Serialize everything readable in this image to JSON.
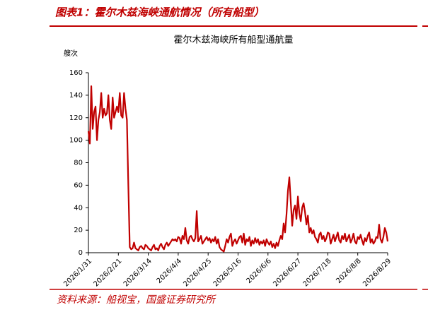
{
  "figure_label": "图表1：霍尔木兹海峡通航情况（所有船型）",
  "source": "资料来源：船视宝，国盛证券研究所",
  "chart_data": {
    "type": "line",
    "title": "霍尔木兹海峡所有船型通航量",
    "y_label": "艘次",
    "xlim": [
      "2026/1/31",
      "2026/8/29"
    ],
    "xticks": [
      "2026/1/31",
      "2026/2/21",
      "2026/3/14",
      "2026/4/4",
      "2026/4/25",
      "2026/5/16",
      "2026/6/6",
      "2026/6/27",
      "2026/7/18",
      "2026/8/8",
      "2026/8/29"
    ],
    "ylim": [
      0,
      160
    ],
    "yticks": [
      0,
      20,
      40,
      60,
      80,
      100,
      120,
      140,
      160
    ],
    "grid": false,
    "x": [
      "2026/1/31",
      "2026/2/1",
      "2026/2/2",
      "2026/2/3",
      "2026/2/4",
      "2026/2/5",
      "2026/2/6",
      "2026/2/7",
      "2026/2/8",
      "2026/2/9",
      "2026/2/10",
      "2026/2/11",
      "2026/2/12",
      "2026/2/13",
      "2026/2/14",
      "2026/2/15",
      "2026/2/16",
      "2026/2/17",
      "2026/2/18",
      "2026/2/19",
      "2026/2/20",
      "2026/2/21",
      "2026/2/22",
      "2026/2/23",
      "2026/2/24",
      "2026/2/25",
      "2026/2/26",
      "2026/2/27",
      "2026/2/28",
      "2026/3/1",
      "2026/3/2",
      "2026/3/3",
      "2026/3/4",
      "2026/3/5",
      "2026/3/6",
      "2026/3/7",
      "2026/3/8",
      "2026/3/9",
      "2026/3/10",
      "2026/3/11",
      "2026/3/12",
      "2026/3/13",
      "2026/3/14",
      "2026/3/15",
      "2026/3/16",
      "2026/3/17",
      "2026/3/18",
      "2026/3/19",
      "2026/3/20",
      "2026/3/21",
      "2026/3/22",
      "2026/3/23",
      "2026/3/24",
      "2026/3/25",
      "2026/3/26",
      "2026/3/27",
      "2026/3/28",
      "2026/3/29",
      "2026/3/30",
      "2026/3/31",
      "2026/4/1",
      "2026/4/2",
      "2026/4/3",
      "2026/4/4",
      "2026/4/5",
      "2026/4/6",
      "2026/4/7",
      "2026/4/8",
      "2026/4/9",
      "2026/4/10",
      "2026/4/11",
      "2026/4/12",
      "2026/4/13",
      "2026/4/14",
      "2026/4/15",
      "2026/4/16",
      "2026/4/17",
      "2026/4/18",
      "2026/4/19",
      "2026/4/20",
      "2026/4/21",
      "2026/4/22",
      "2026/4/23",
      "2026/4/24",
      "2026/4/25",
      "2026/4/26",
      "2026/4/27",
      "2026/4/28",
      "2026/4/29",
      "2026/4/30",
      "2026/5/1",
      "2026/5/2",
      "2026/5/3",
      "2026/5/4",
      "2026/5/5",
      "2026/5/6",
      "2026/5/7",
      "2026/5/8",
      "2026/5/9",
      "2026/5/10",
      "2026/5/11",
      "2026/5/12",
      "2026/5/13",
      "2026/5/14",
      "2026/5/15",
      "2026/5/16",
      "2026/5/17",
      "2026/5/18",
      "2026/5/19",
      "2026/5/20",
      "2026/5/21",
      "2026/5/22",
      "2026/5/23",
      "2026/5/24",
      "2026/5/25",
      "2026/5/26",
      "2026/5/27",
      "2026/5/28",
      "2026/5/29",
      "2026/5/30",
      "2026/5/31",
      "2026/6/1",
      "2026/6/2",
      "2026/6/3",
      "2026/6/4",
      "2026/6/5",
      "2026/6/6",
      "2026/6/7",
      "2026/6/8",
      "2026/6/9",
      "2026/6/10",
      "2026/6/11",
      "2026/6/12",
      "2026/6/13",
      "2026/6/14",
      "2026/6/15",
      "2026/6/16",
      "2026/6/17",
      "2026/6/18",
      "2026/6/19",
      "2026/6/20",
      "2026/6/21",
      "2026/6/22",
      "2026/6/23",
      "2026/6/24",
      "2026/6/25",
      "2026/6/26",
      "2026/6/27",
      "2026/6/28",
      "2026/6/29",
      "2026/6/30",
      "2026/7/1",
      "2026/7/2",
      "2026/7/3",
      "2026/7/4",
      "2026/7/5",
      "2026/7/6",
      "2026/7/7",
      "2026/7/8",
      "2026/7/9",
      "2026/7/10",
      "2026/7/11",
      "2026/7/12",
      "2026/7/13",
      "2026/7/14",
      "2026/7/15",
      "2026/7/16",
      "2026/7/17",
      "2026/7/18",
      "2026/7/19",
      "2026/7/20",
      "2026/7/21",
      "2026/7/22",
      "2026/7/23",
      "2026/7/24",
      "2026/7/25",
      "2026/7/26",
      "2026/7/27",
      "2026/7/28",
      "2026/7/29",
      "2026/7/30",
      "2026/7/31",
      "2026/8/1",
      "2026/8/2",
      "2026/8/3",
      "2026/8/4",
      "2026/8/5",
      "2026/8/6",
      "2026/8/7",
      "2026/8/8",
      "2026/8/9",
      "2026/8/10",
      "2026/8/11",
      "2026/8/12",
      "2026/8/13",
      "2026/8/14",
      "2026/8/15",
      "2026/8/16",
      "2026/8/17",
      "2026/8/18",
      "2026/8/19",
      "2026/8/20",
      "2026/8/21",
      "2026/8/22",
      "2026/8/23",
      "2026/8/24",
      "2026/8/25",
      "2026/8/26",
      "2026/8/27",
      "2026/8/28",
      "2026/8/29"
    ],
    "series": [
      {
        "color": "#c00000",
        "values": [
          108,
          97,
          148,
          110,
          125,
          130,
          100,
          118,
          125,
          142,
          120,
          128,
          122,
          124,
          140,
          118,
          110,
          138,
          120,
          125,
          130,
          125,
          142,
          122,
          120,
          142,
          128,
          118,
          60,
          5,
          3,
          4,
          9,
          4,
          3,
          2,
          5,
          6,
          4,
          3,
          7,
          6,
          4,
          3,
          2,
          5,
          7,
          3,
          4,
          2,
          6,
          8,
          5,
          3,
          7,
          9,
          6,
          8,
          10,
          12,
          11,
          12,
          10,
          14,
          13,
          8,
          15,
          12,
          22,
          11,
          8,
          14,
          15,
          12,
          10,
          13,
          37,
          10,
          12,
          15,
          8,
          10,
          12,
          14,
          11,
          13,
          9,
          12,
          10,
          14,
          8,
          12,
          5,
          3,
          2,
          1,
          6,
          12,
          9,
          14,
          17,
          6,
          10,
          12,
          8,
          11,
          14,
          15,
          9,
          17,
          7,
          12,
          10,
          14,
          6,
          11,
          8,
          13,
          9,
          12,
          7,
          10,
          8,
          11,
          6,
          12,
          9,
          7,
          10,
          5,
          8,
          4,
          9,
          6,
          11,
          15,
          12,
          26,
          18,
          34,
          55,
          67,
          45,
          24,
          38,
          42,
          30,
          50,
          35,
          28,
          40,
          44,
          36,
          25,
          33,
          18,
          22,
          17,
          20,
          14,
          12,
          9,
          16,
          18,
          12,
          15,
          10,
          13,
          18,
          17,
          8,
          12,
          16,
          10,
          14,
          18,
          11,
          9,
          15,
          12,
          17,
          10,
          13,
          16,
          9,
          12,
          17,
          10,
          8,
          14,
          12,
          16,
          11,
          7,
          13,
          10,
          15,
          18,
          9,
          12,
          8,
          10,
          14,
          13,
          25,
          12,
          9,
          14,
          22,
          18,
          10
        ]
      }
    ]
  }
}
